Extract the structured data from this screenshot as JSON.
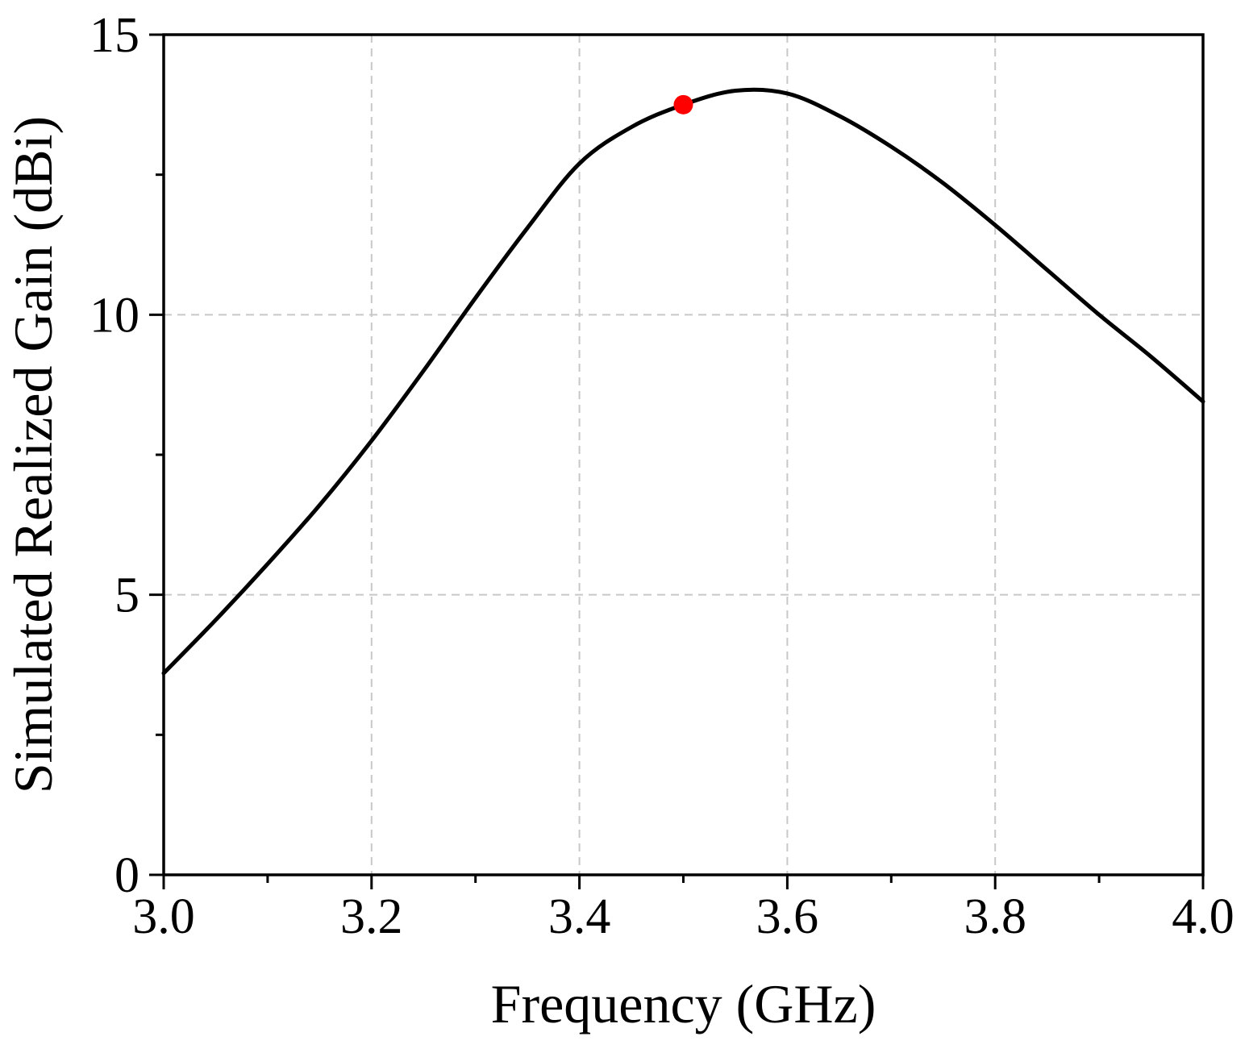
{
  "chart_data": {
    "type": "line",
    "title": "",
    "xlabel": "Frequency (GHz)",
    "ylabel": "Simulated Realized Gain (dBi)",
    "xlim": [
      3.0,
      4.0
    ],
    "ylim": [
      0,
      15
    ],
    "x_ticks": [
      3.0,
      3.2,
      3.4,
      3.6,
      3.8,
      4.0
    ],
    "x_tick_labels": [
      "3.0",
      "3.2",
      "3.4",
      "3.6",
      "3.8",
      "4.0"
    ],
    "x_minor_ticks": [
      3.1,
      3.3,
      3.5,
      3.7,
      3.9
    ],
    "y_ticks": [
      0,
      5,
      10,
      15
    ],
    "y_tick_labels": [
      "0",
      "5",
      "10",
      "15"
    ],
    "y_minor_ticks": [
      2.5,
      7.5,
      12.5
    ],
    "grid": true,
    "legend": "none",
    "series": [
      {
        "color": "#000000",
        "x": [
          3.0,
          3.05,
          3.1,
          3.15,
          3.2,
          3.25,
          3.3,
          3.35,
          3.4,
          3.45,
          3.5,
          3.55,
          3.6,
          3.65,
          3.7,
          3.75,
          3.8,
          3.85,
          3.9,
          3.95,
          4.0
        ],
        "y": [
          3.6,
          4.55,
          5.55,
          6.6,
          7.75,
          9.0,
          10.3,
          11.55,
          12.7,
          13.35,
          13.75,
          14.0,
          13.95,
          13.55,
          13.0,
          12.35,
          11.6,
          10.8,
          10.0,
          9.25,
          8.45
        ]
      }
    ],
    "markers": [
      {
        "x": 3.5,
        "y": 13.75,
        "color": "#ff0000"
      }
    ]
  }
}
